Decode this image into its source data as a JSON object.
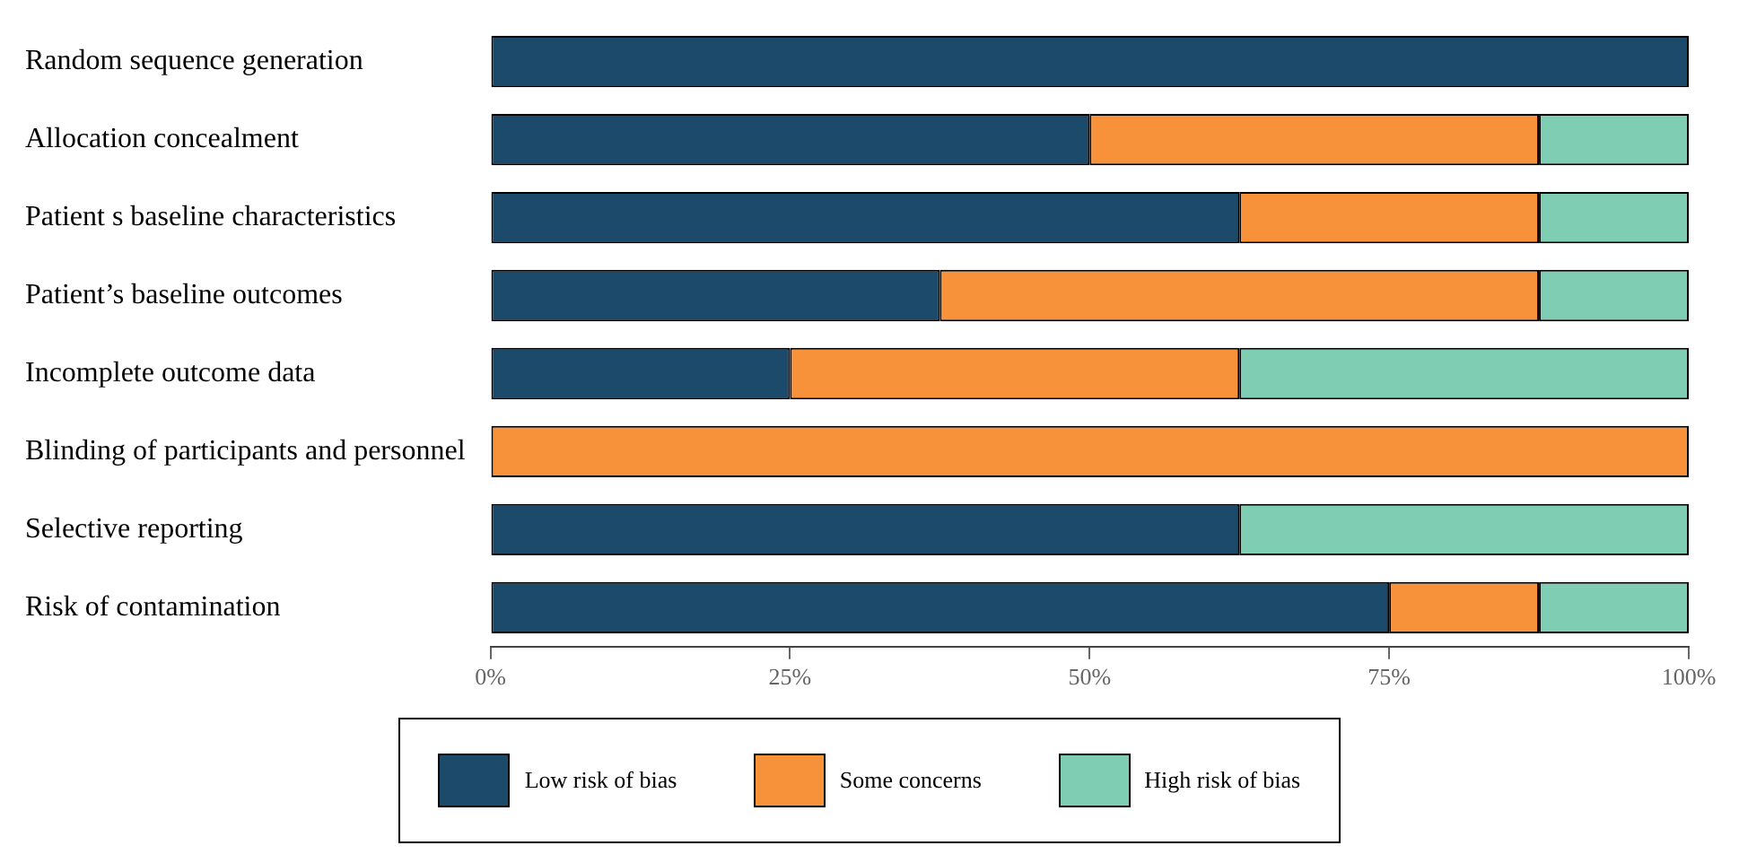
{
  "chart_data": {
    "type": "bar",
    "orientation": "horizontal",
    "stacked": true,
    "grid": false,
    "legend": "bottom",
    "categories": [
      "Random sequence generation",
      "Allocation concealment",
      "Patient s baseline characteristics",
      "Patient’s baseline outcomes",
      "Incomplete outcome data",
      "Blinding of participants and personnel",
      "Selective reporting",
      "Risk of contamination"
    ],
    "series": [
      {
        "name": "Low risk of bias",
        "color": "#1c4a6b",
        "values": [
          100,
          50,
          62.5,
          37.5,
          25,
          0,
          62.5,
          75
        ]
      },
      {
        "name": "Some concerns",
        "color": "#f7923a",
        "values": [
          0,
          37.5,
          25,
          50,
          37.5,
          100,
          0,
          12.5
        ]
      },
      {
        "name": "High risk of bias",
        "color": "#7fceb3",
        "values": [
          0,
          12.5,
          12.5,
          12.5,
          37.5,
          0,
          37.5,
          12.5
        ]
      }
    ],
    "xlim": [
      0,
      100
    ],
    "xticks": [
      {
        "value": 0,
        "label": "0%"
      },
      {
        "value": 25,
        "label": "25%"
      },
      {
        "value": 50,
        "label": "50%"
      },
      {
        "value": 75,
        "label": "75%"
      },
      {
        "value": 100,
        "label": "100%"
      }
    ]
  }
}
